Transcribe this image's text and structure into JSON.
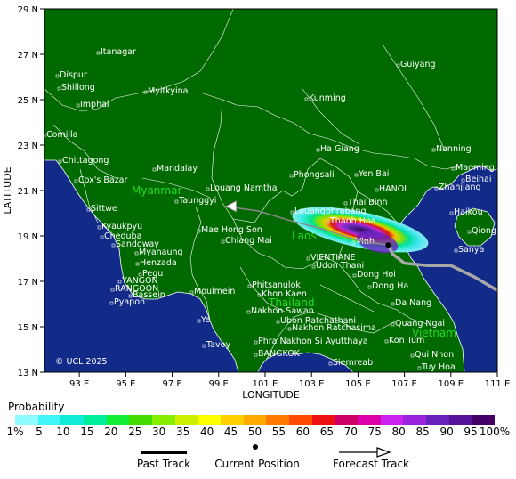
{
  "axes": {
    "lat_ticks": [
      "29 N",
      "27 N",
      "25 N",
      "23 N",
      "21 N",
      "19 N",
      "17 N",
      "15 N",
      "13 N"
    ],
    "lon_ticks": [
      "93 E",
      "95 E",
      "97 E",
      "99 E",
      "101 E",
      "103 E",
      "105 E",
      "107 E",
      "109 E",
      "111 E"
    ],
    "x_title": "LONGITUDE",
    "y_title": "LATITUDE"
  },
  "countries": [
    "Myanmar",
    "Laos",
    "Thailand",
    "Vietnam"
  ],
  "cities": [
    "Itanagar",
    "Dispur",
    "Shillong",
    "Imphal",
    "Myitkyina",
    "Guiyang",
    "Kunming",
    "Comilla",
    "Chittagong",
    "Cox's Bazar",
    "Mandalay",
    "Ha Giang",
    "Nanning",
    "Maoming",
    "Beihai",
    "Zhanjiang",
    "Phongsali",
    "Yen Bai",
    "Louang Namtha",
    "HANOI",
    "Taunggyi",
    "Sittwe",
    "Thai Binh",
    "Haikou",
    "Louangphrabang",
    "Thanh Hoa",
    "Kyaukpyu",
    "Mae Hong Son",
    "Qionghai",
    "Vinh",
    "Sanya",
    "Cheduba",
    "Chiang Mai",
    "Sandoway",
    "Myanaung",
    "VIENTIANE",
    "Udon Thani",
    "Henzada",
    "Pegu",
    "Dong Hoi",
    "YANGON",
    "RANGOON",
    "Bassein",
    "Phitsanulok",
    "Dong Ha",
    "Pyapon",
    "Moulmein",
    "Khon Kaen",
    "Nakhon Sawan",
    "Da Nang",
    "Ye",
    "Ubon Ratchathani",
    "Quang Ngai",
    "Nakhon Ratchasima",
    "Phra Nakhon Si Ayutthaya",
    "Kon Tum",
    "Tavoy",
    "BANGKOK",
    "Qui Nhon",
    "Siemreab",
    "Tuy Hoa"
  ],
  "copyright": "© UCL 2025",
  "legend": {
    "title": "Probability",
    "labels": [
      "1%",
      "5",
      "10",
      "15",
      "20",
      "25",
      "30",
      "35",
      "40",
      "45",
      "50",
      "55",
      "60",
      "65",
      "70",
      "75",
      "80",
      "85",
      "90",
      "95",
      "100%"
    ],
    "colors": [
      "#8ffcff",
      "#3ff5f5",
      "#10ecd8",
      "#00ee99",
      "#11ee33",
      "#44dd00",
      "#88ee00",
      "#ccf000",
      "#ffff00",
      "#ffd000",
      "#ffaa00",
      "#ff7a00",
      "#ff4a00",
      "#ee1111",
      "#cc0066",
      "#dd00aa",
      "#cc22ee",
      "#9922dd",
      "#6622bb",
      "#551199",
      "#440066"
    ]
  },
  "key": {
    "past_track": "Past Track",
    "current_position": "Current Position",
    "forecast_track": "Forecast Track"
  },
  "storm": {
    "past_track": [
      [
        111.0,
        16.6
      ],
      [
        110.0,
        17.2
      ],
      [
        109.0,
        17.7
      ],
      [
        108.0,
        17.7
      ],
      [
        107.0,
        17.8
      ],
      [
        106.5,
        18.2
      ],
      [
        106.3,
        18.6
      ]
    ],
    "forecast_track": [
      [
        106.3,
        18.6
      ],
      [
        105.0,
        18.8
      ],
      [
        103.5,
        19.3
      ],
      [
        102.0,
        19.7
      ],
      [
        100.7,
        20.1
      ],
      [
        99.3,
        20.3
      ]
    ],
    "current_position": [
      106.3,
      18.6
    ]
  }
}
